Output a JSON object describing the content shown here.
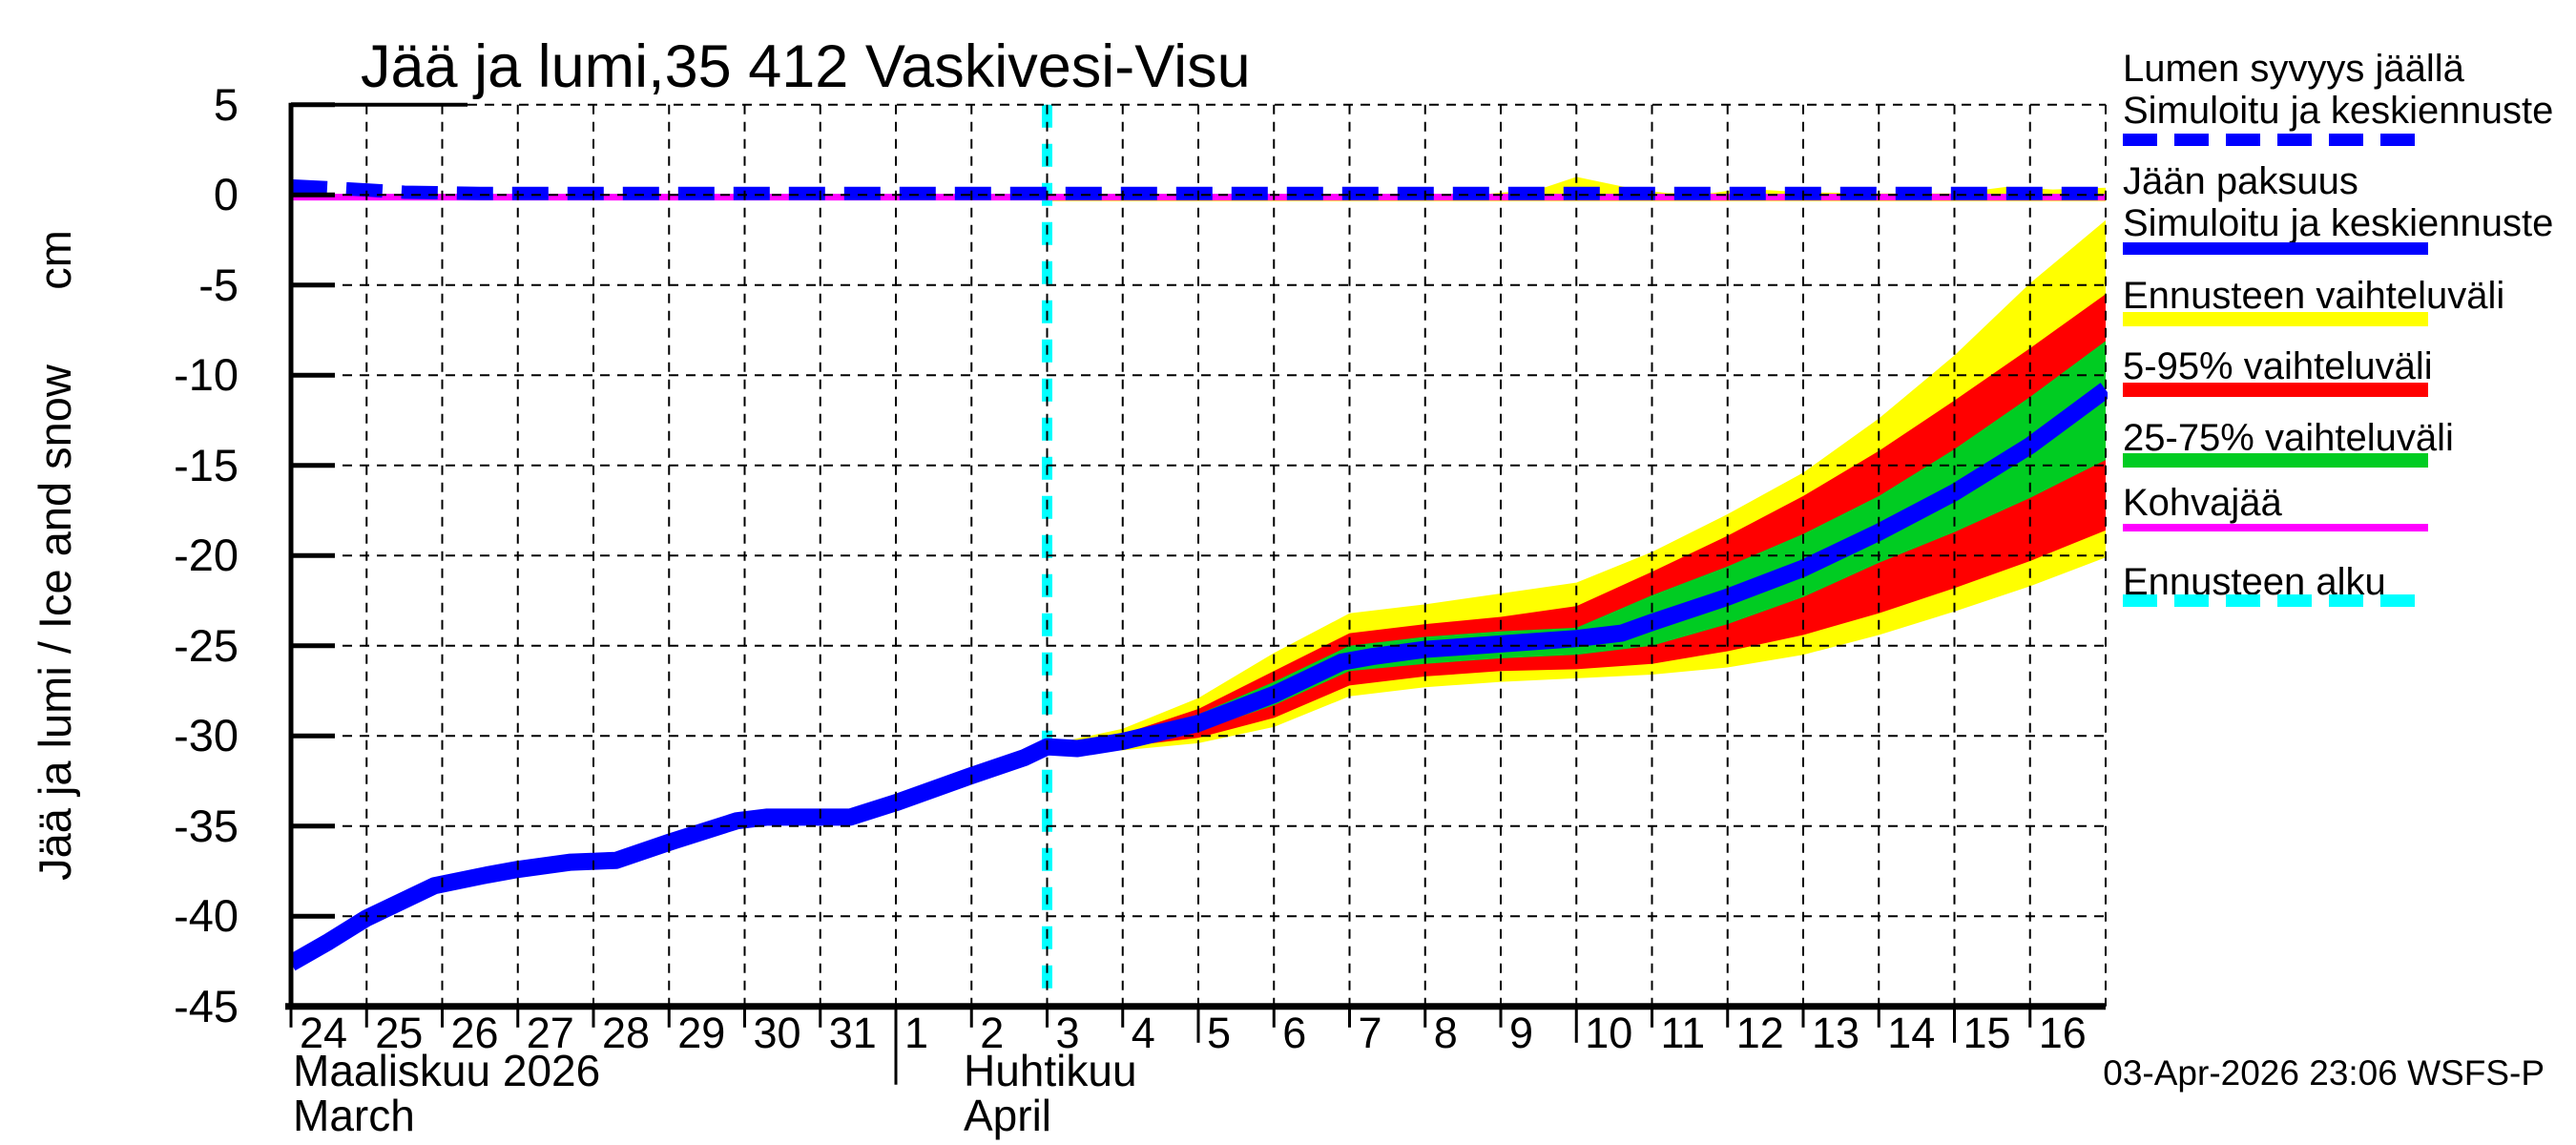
{
  "title": "Jää ja lumi,35 412 Vaskivesi-Visu",
  "stamp": "03-Apr-2026 23:06 WSFS-P",
  "y_axis": {
    "label": "Jää ja lumi / Ice and snow      cm",
    "ticks": [
      "5",
      "0",
      "-5",
      "-10",
      "-15",
      "-20",
      "-25",
      "-30",
      "-35",
      "-40",
      "-45"
    ],
    "range": [
      5,
      -45
    ]
  },
  "x_axis": {
    "day_ticks": [
      "24",
      "25",
      "26",
      "27",
      "28",
      "29",
      "30",
      "31",
      "1",
      "2",
      "3",
      "4",
      "5",
      "6",
      "7",
      "8",
      "9",
      "10",
      "11",
      "12",
      "13",
      "14",
      "15",
      "16"
    ],
    "months": [
      {
        "fi": "Maaliskuu 2026",
        "en": "March"
      },
      {
        "fi": "Huhtikuu",
        "en": "April"
      }
    ]
  },
  "legend": [
    {
      "lines": [
        "Lumen syvyys jäällä",
        "Simuloitu ja keskiennuste"
      ],
      "swatch": "dashed-line",
      "color": "#0000ff"
    },
    {
      "lines": [
        "Jään paksuus",
        "Simuloitu ja keskiennuste"
      ],
      "swatch": "solid-line",
      "color": "#0000ff"
    },
    {
      "lines": [
        "Ennusteen vaihteluväli"
      ],
      "swatch": "bar",
      "color": "#ffff00"
    },
    {
      "lines": [
        "5-95% vaihteluväli"
      ],
      "swatch": "bar",
      "color": "#ff0000"
    },
    {
      "lines": [
        "25-75% vaihteluväli"
      ],
      "swatch": "bar",
      "color": "#00cc22"
    },
    {
      "lines": [
        "Kohvajää"
      ],
      "swatch": "solid-line",
      "color": "#ff00ff"
    },
    {
      "lines": [
        "Ennusteen alku"
      ],
      "swatch": "dashed-line",
      "color": "#00ffff"
    }
  ],
  "chart_data": {
    "type": "line",
    "title": "Jää ja lumi,35 412 Vaskivesi-Visu",
    "ylabel": "Jää ja lumi / Ice and snow (cm)",
    "ylim": [
      -45,
      5
    ],
    "grid": true,
    "x_unit": "days since 2026-03-24",
    "x_range_days": [
      0,
      24
    ],
    "forecast_start_day": 10,
    "forecast_start_label": "Ennusteen alku (3.4.2026)",
    "colors": {
      "ice_line": "#0000ff",
      "snow_line": "#0000ff",
      "kohvajaa": "#ff00ff",
      "band_minmax": "#ffff00",
      "band_5_95": "#ff0000",
      "band_25_75": "#00cc22",
      "forecast_start": "#00ffff"
    },
    "series": [
      {
        "name": "Jään paksuus — Simuloitu ja keskiennuste",
        "style": "solid",
        "points": [
          [
            0,
            -42.6
          ],
          [
            0.5,
            -41.4
          ],
          [
            1,
            -40.1
          ],
          [
            1.9,
            -38.3
          ],
          [
            2.6,
            -37.7
          ],
          [
            3,
            -37.4
          ],
          [
            3.7,
            -37.0
          ],
          [
            4.3,
            -36.9
          ],
          [
            5,
            -35.9
          ],
          [
            5.9,
            -34.7
          ],
          [
            6.3,
            -34.5
          ],
          [
            7.4,
            -34.5
          ],
          [
            8,
            -33.7
          ],
          [
            9,
            -32.2
          ],
          [
            9.7,
            -31.2
          ],
          [
            10,
            -30.6
          ],
          [
            10.4,
            -30.7
          ],
          [
            11,
            -30.3
          ],
          [
            12,
            -29.3
          ],
          [
            13,
            -27.7
          ],
          [
            13.9,
            -25.9
          ],
          [
            14.3,
            -25.6
          ],
          [
            15,
            -25.2
          ],
          [
            16,
            -24.9
          ],
          [
            17,
            -24.6
          ],
          [
            17.6,
            -24.3
          ],
          [
            18,
            -23.7
          ],
          [
            19,
            -22.3
          ],
          [
            20,
            -20.7
          ],
          [
            21,
            -18.7
          ],
          [
            22,
            -16.5
          ],
          [
            23,
            -13.9
          ],
          [
            24,
            -10.8
          ]
        ]
      },
      {
        "name": "Lumen syvyys jäällä — Simuloitu ja keskiennuste",
        "style": "dashed",
        "points": [
          [
            0,
            0.5
          ],
          [
            0.7,
            0.35
          ],
          [
            1.5,
            0.15
          ],
          [
            2.5,
            0.08
          ],
          [
            24,
            0.08
          ]
        ]
      },
      {
        "name": "Kohvajää",
        "style": "solid",
        "points": [
          [
            0,
            -0.12
          ],
          [
            24,
            -0.12
          ]
        ]
      }
    ],
    "bands": {
      "days": [
        10,
        11,
        12,
        13,
        14,
        15,
        16,
        17,
        18,
        19,
        20,
        21,
        22,
        23,
        24
      ],
      "minmax_top": [
        -30.5,
        -29.6,
        -27.9,
        -25.4,
        -23.2,
        -22.7,
        -22.1,
        -21.5,
        -19.8,
        -17.7,
        -15.4,
        -12.4,
        -8.9,
        -4.9,
        -1.4
      ],
      "p5_top": [
        -30.6,
        -29.9,
        -28.5,
        -26.4,
        -24.3,
        -23.8,
        -23.4,
        -22.8,
        -20.9,
        -18.9,
        -16.7,
        -14.2,
        -11.4,
        -8.5,
        -5.5
      ],
      "p25_top": [
        -30.6,
        -30.0,
        -28.8,
        -27.0,
        -25.0,
        -24.5,
        -24.2,
        -24.0,
        -22.2,
        -20.6,
        -18.8,
        -16.7,
        -14.1,
        -11.2,
        -8.1
      ],
      "p75_bottom": [
        -30.6,
        -30.4,
        -29.7,
        -28.3,
        -26.4,
        -26.0,
        -25.7,
        -25.5,
        -25.0,
        -23.8,
        -22.3,
        -20.4,
        -18.7,
        -16.8,
        -14.7
      ],
      "p95_bottom": [
        -30.6,
        -30.6,
        -30.1,
        -29.0,
        -27.2,
        -26.7,
        -26.4,
        -26.3,
        -26.0,
        -25.3,
        -24.4,
        -23.2,
        -21.8,
        -20.3,
        -18.6
      ],
      "minmax_bottom": [
        -30.7,
        -30.8,
        -30.4,
        -29.5,
        -27.8,
        -27.3,
        -27.0,
        -26.8,
        -26.6,
        -26.2,
        -25.5,
        -24.4,
        -23.1,
        -21.7,
        -20.1
      ]
    },
    "snow_band_top": [
      [
        10,
        0.05
      ],
      [
        15.8,
        0.05
      ],
      [
        16.5,
        0.3
      ],
      [
        17,
        1.0
      ],
      [
        17.8,
        0.3
      ],
      [
        18.2,
        0.1
      ],
      [
        18.8,
        0.1
      ],
      [
        19.2,
        0.35
      ],
      [
        20,
        0.15
      ],
      [
        21,
        0.08
      ],
      [
        22,
        0.08
      ],
      [
        22.7,
        0.45
      ],
      [
        23.3,
        0.3
      ],
      [
        24,
        0.4
      ]
    ]
  }
}
